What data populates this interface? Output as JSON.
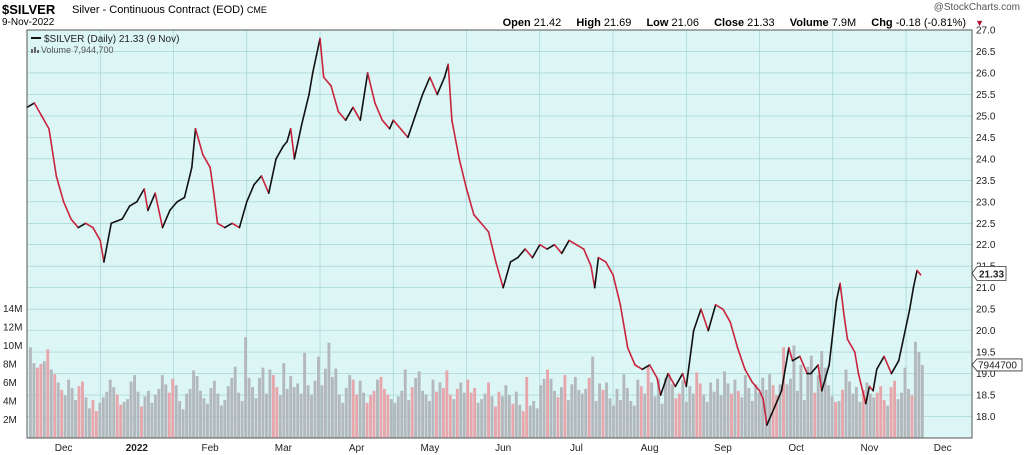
{
  "header": {
    "symbol": "$SILVER",
    "description": "Silver - Continuous Contract (EOD)",
    "exchange": "CME",
    "date": "9-Nov-2022",
    "watermark": "@StockCharts.com",
    "open_label": "Open",
    "open": "21.42",
    "high_label": "High",
    "high": "21.69",
    "low_label": "Low",
    "low": "21.06",
    "close_label": "Close",
    "close": "21.33",
    "volume_label": "Volume",
    "volume": "7.9M",
    "chg_label": "Chg",
    "chg": "-0.18 (-0.81%)",
    "chg_arrow": "▼"
  },
  "chart_data": {
    "type": "line",
    "legend": {
      "price": "$SILVER (Daily) 21.33 (9 Nov)",
      "volume": "Volume 7,944,700"
    },
    "price_axis": {
      "range": [
        17.5,
        27.0
      ],
      "ticks": [
        "18.0",
        "18.5",
        "19.0",
        "19.5",
        "20.0",
        "20.5",
        "21.0",
        "21.5",
        "22.0",
        "22.5",
        "23.0",
        "23.5",
        "24.0",
        "24.5",
        "25.0",
        "25.5",
        "26.0",
        "26.5",
        "27.0"
      ],
      "last_label": "21.33"
    },
    "volume_axis": {
      "range_millions": [
        0,
        16
      ],
      "ticks": [
        "2M",
        "4M",
        "6M",
        "8M",
        "10M",
        "12M",
        "14M"
      ],
      "last_label": "7944700"
    },
    "x_labels": [
      {
        "label": "Dec",
        "month": 0.5
      },
      {
        "label": "2022",
        "month": 1.5,
        "bold": true
      },
      {
        "label": "Feb",
        "month": 2.5
      },
      {
        "label": "Mar",
        "month": 3.5
      },
      {
        "label": "Apr",
        "month": 4.5
      },
      {
        "label": "May",
        "month": 5.5
      },
      {
        "label": "Jun",
        "month": 6.5
      },
      {
        "label": "Jul",
        "month": 7.5
      },
      {
        "label": "Aug",
        "month": 8.5
      },
      {
        "label": "Sep",
        "month": 9.5
      },
      {
        "label": "Oct",
        "month": 10.5
      },
      {
        "label": "Nov",
        "month": 11.5
      },
      {
        "label": "Dec",
        "month": 12.5
      }
    ],
    "x_domain_months": [
      0,
      12.9
    ],
    "series": [
      {
        "kind": "price",
        "points": [
          [
            0.0,
            25.2
          ],
          [
            0.1,
            25.3
          ],
          [
            0.2,
            25.0
          ],
          [
            0.3,
            24.7
          ],
          [
            0.4,
            23.6
          ],
          [
            0.5,
            23.0
          ],
          [
            0.6,
            22.6
          ],
          [
            0.7,
            22.4
          ],
          [
            0.8,
            22.5
          ],
          [
            0.9,
            22.4
          ],
          [
            1.0,
            22.1
          ],
          [
            1.05,
            21.6
          ],
          [
            1.15,
            22.5
          ],
          [
            1.3,
            22.6
          ],
          [
            1.4,
            22.9
          ],
          [
            1.5,
            23.0
          ],
          [
            1.6,
            23.3
          ],
          [
            1.65,
            22.8
          ],
          [
            1.75,
            23.2
          ],
          [
            1.85,
            22.4
          ],
          [
            1.95,
            22.8
          ],
          [
            2.05,
            23.0
          ],
          [
            2.15,
            23.1
          ],
          [
            2.25,
            23.8
          ],
          [
            2.3,
            24.7
          ],
          [
            2.4,
            24.1
          ],
          [
            2.5,
            23.8
          ],
          [
            2.55,
            23.2
          ],
          [
            2.6,
            22.5
          ],
          [
            2.7,
            22.4
          ],
          [
            2.8,
            22.5
          ],
          [
            2.9,
            22.4
          ],
          [
            3.0,
            23.0
          ],
          [
            3.1,
            23.4
          ],
          [
            3.2,
            23.6
          ],
          [
            3.3,
            23.2
          ],
          [
            3.4,
            24.0
          ],
          [
            3.5,
            24.3
          ],
          [
            3.55,
            24.4
          ],
          [
            3.6,
            24.7
          ],
          [
            3.65,
            24.0
          ],
          [
            3.75,
            24.8
          ],
          [
            3.85,
            25.5
          ],
          [
            3.9,
            26.0
          ],
          [
            3.95,
            26.4
          ],
          [
            4.0,
            26.8
          ],
          [
            4.05,
            25.9
          ],
          [
            4.15,
            25.7
          ],
          [
            4.25,
            25.1
          ],
          [
            4.35,
            24.9
          ],
          [
            4.45,
            25.2
          ],
          [
            4.55,
            24.9
          ],
          [
            4.65,
            26.0
          ],
          [
            4.75,
            25.3
          ],
          [
            4.85,
            24.9
          ],
          [
            4.95,
            24.7
          ],
          [
            5.0,
            24.9
          ],
          [
            5.1,
            24.7
          ],
          [
            5.2,
            24.5
          ],
          [
            5.3,
            25.0
          ],
          [
            5.4,
            25.5
          ],
          [
            5.5,
            25.9
          ],
          [
            5.6,
            25.5
          ],
          [
            5.7,
            25.9
          ],
          [
            5.75,
            26.2
          ],
          [
            5.8,
            24.9
          ],
          [
            5.9,
            24.0
          ],
          [
            6.0,
            23.3
          ],
          [
            6.1,
            22.7
          ],
          [
            6.2,
            22.5
          ],
          [
            6.3,
            22.3
          ],
          [
            6.4,
            21.6
          ],
          [
            6.5,
            21.0
          ],
          [
            6.6,
            21.6
          ],
          [
            6.7,
            21.7
          ],
          [
            6.8,
            21.9
          ],
          [
            6.9,
            21.7
          ],
          [
            7.0,
            22.0
          ],
          [
            7.1,
            21.9
          ],
          [
            7.2,
            22.0
          ],
          [
            7.3,
            21.8
          ],
          [
            7.4,
            22.1
          ],
          [
            7.5,
            22.0
          ],
          [
            7.6,
            21.9
          ],
          [
            7.7,
            21.5
          ],
          [
            7.75,
            21.0
          ],
          [
            7.8,
            21.7
          ],
          [
            7.9,
            21.6
          ],
          [
            8.0,
            21.3
          ],
          [
            8.1,
            20.6
          ],
          [
            8.2,
            19.6
          ],
          [
            8.3,
            19.2
          ],
          [
            8.4,
            19.1
          ],
          [
            8.5,
            19.2
          ],
          [
            8.6,
            18.9
          ],
          [
            8.65,
            18.5
          ],
          [
            8.75,
            19.0
          ],
          [
            8.85,
            18.7
          ],
          [
            8.95,
            19.0
          ],
          [
            9.0,
            18.7
          ],
          [
            9.1,
            20.0
          ],
          [
            9.2,
            20.5
          ],
          [
            9.3,
            20.0
          ],
          [
            9.4,
            20.6
          ],
          [
            9.5,
            20.5
          ],
          [
            9.6,
            20.2
          ],
          [
            9.7,
            19.6
          ],
          [
            9.8,
            19.1
          ],
          [
            9.9,
            18.8
          ],
          [
            10.0,
            18.6
          ],
          [
            10.05,
            18.4
          ],
          [
            10.1,
            17.8
          ],
          [
            10.2,
            18.2
          ],
          [
            10.3,
            18.6
          ],
          [
            10.4,
            19.6
          ],
          [
            10.45,
            19.3
          ],
          [
            10.55,
            19.4
          ],
          [
            10.65,
            19.0
          ],
          [
            10.7,
            19.0
          ],
          [
            10.8,
            19.2
          ],
          [
            10.85,
            18.6
          ],
          [
            10.95,
            19.2
          ],
          [
            11.05,
            20.7
          ],
          [
            11.1,
            21.1
          ],
          [
            11.15,
            20.4
          ],
          [
            11.2,
            19.8
          ],
          [
            11.3,
            19.5
          ],
          [
            11.35,
            19.0
          ],
          [
            11.45,
            18.3
          ],
          [
            11.5,
            18.7
          ],
          [
            11.55,
            18.6
          ],
          [
            11.6,
            19.1
          ],
          [
            11.7,
            19.4
          ],
          [
            11.8,
            19.0
          ],
          [
            11.9,
            19.3
          ],
          [
            11.95,
            19.7
          ],
          [
            12.05,
            20.5
          ],
          [
            12.1,
            21.0
          ],
          [
            12.15,
            21.4
          ],
          [
            12.2,
            21.3
          ]
        ]
      },
      {
        "kind": "volume_millions",
        "values": [
          9.8,
          8.1,
          7.6,
          8.0,
          8.3,
          9.6,
          7.4,
          6.9,
          6.0,
          5.2,
          4.6,
          6.3,
          5.4,
          4.1,
          5.6,
          6.1,
          4.4,
          3.2,
          4.1,
          2.9,
          3.8,
          4.4,
          5.0,
          6.3,
          5.5,
          4.7,
          3.6,
          3.9,
          4.2,
          6.1,
          6.8,
          5.0,
          3.4,
          4.5,
          5.1,
          3.8,
          4.7,
          5.3,
          6.8,
          5.8,
          4.9,
          6.4,
          5.7,
          4.0,
          3.1,
          4.8,
          5.3,
          7.3,
          6.7,
          5.1,
          4.3,
          3.7,
          5.4,
          6.2,
          4.8,
          3.5,
          4.1,
          5.6,
          6.5,
          7.7,
          4.9,
          4.0,
          10.9,
          6.5,
          5.5,
          4.3,
          6.5,
          7.6,
          4.8,
          7.4,
          6.8,
          5.5,
          4.6,
          8.1,
          5.3,
          6.7,
          5.5,
          5.9,
          4.8,
          9.2,
          5.7,
          4.7,
          6.2,
          8.8,
          5.7,
          7.5,
          10.3,
          6.6,
          7.5,
          4.7,
          3.8,
          5.4,
          6.8,
          6.3,
          4.7,
          6.2,
          4.9,
          3.8,
          4.6,
          5.1,
          6.3,
          6.6,
          5.3,
          4.7,
          4.2,
          3.8,
          4.5,
          5.1,
          7.4,
          4.1,
          5.5,
          6.5,
          7.2,
          5.1,
          4.7,
          4.0,
          6.3,
          5.0,
          6.0,
          5.4,
          7.3,
          4.7,
          4.2,
          5.3,
          6.0,
          4.9,
          6.3,
          4.9,
          5.4,
          3.8,
          4.2,
          4.8,
          6.0,
          4.5,
          3.4,
          5.0,
          4.5,
          5.7,
          4.6,
          3.7,
          5.0,
          3.6,
          2.9,
          6.6,
          3.5,
          4.0,
          3.2,
          5.7,
          6.4,
          7.4,
          6.4,
          5.1,
          4.4,
          5.5,
          6.8,
          4.1,
          5.8,
          6.6,
          5.2,
          4.8,
          5.3,
          6.5,
          8.8,
          4.0,
          5.9,
          5.2,
          6.0,
          4.3,
          3.5,
          5.3,
          4.1,
          6.9,
          5.4,
          4.0,
          3.5,
          6.3,
          5.6,
          4.8,
          7.8,
          6.0,
          4.5,
          6.4,
          3.7,
          6.5,
          7.0,
          5.8,
          4.3,
          4.8,
          6.2,
          3.9,
          5.6,
          4.8,
          7.1,
          5.9,
          4.7,
          3.9,
          6.0,
          5.0,
          6.4,
          4.6,
          7.2,
          5.9,
          4.8,
          6.3,
          5.1,
          4.4,
          6.8,
          5.4,
          4.0,
          5.8,
          4.9,
          6.5,
          5.2,
          6.9,
          5.7,
          4.6,
          5.8,
          9.8,
          5.8,
          6.4,
          10.0,
          5.1,
          7.9,
          4.1,
          7.7,
          8.9,
          4.9,
          6.8,
          9.4,
          7.6,
          5.7,
          4.5,
          3.9,
          4.0,
          5.2,
          7.4,
          6.1,
          4.8,
          5.5,
          3.9,
          5.2,
          6.0,
          4.8,
          4.4,
          4.9,
          5.6,
          4.1,
          3.5,
          5.5,
          6.2,
          4.2,
          4.9,
          7.6,
          5.3,
          4.6,
          10.4,
          9.3,
          7.9
        ]
      }
    ]
  },
  "colors": {
    "plot_bg": "#dcf5f5",
    "grid": "#9cd0d0",
    "up": "#111111",
    "down": "#c8243c",
    "vol_up": "#b3b8bc",
    "vol_down": "#e6a6ac",
    "border": "#555555"
  }
}
